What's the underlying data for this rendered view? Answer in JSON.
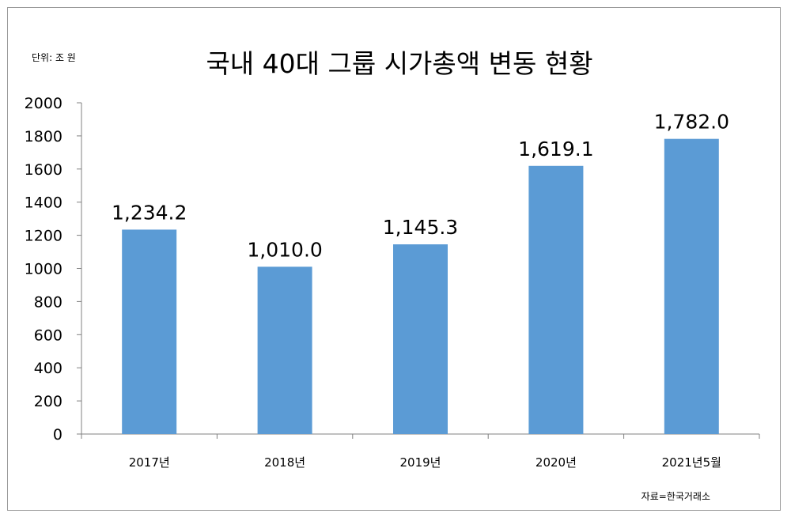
{
  "unit_label": "단위: 조 원",
  "source_label": "자료=한국거래소",
  "chart_data": {
    "type": "bar",
    "title": "국내 40대 그룹 시가총액 변동 현황",
    "categories": [
      "2017년",
      "2018년",
      "2019년",
      "2020년",
      "2021년5월"
    ],
    "values": [
      1234.2,
      1010.0,
      1145.3,
      1619.1,
      1782.0
    ],
    "data_labels": [
      "1,234.2",
      "1,010.0",
      "1,145.3",
      "1,619.1",
      "1,782.0"
    ],
    "ylim": [
      0,
      2000
    ],
    "yticks": [
      0,
      200,
      400,
      600,
      800,
      1000,
      1200,
      1400,
      1600,
      1800,
      2000
    ],
    "xlabel": "",
    "ylabel": "",
    "grid": false,
    "legend": "none",
    "bar_color": "#5b9bd5",
    "axis_color": "#808080"
  }
}
